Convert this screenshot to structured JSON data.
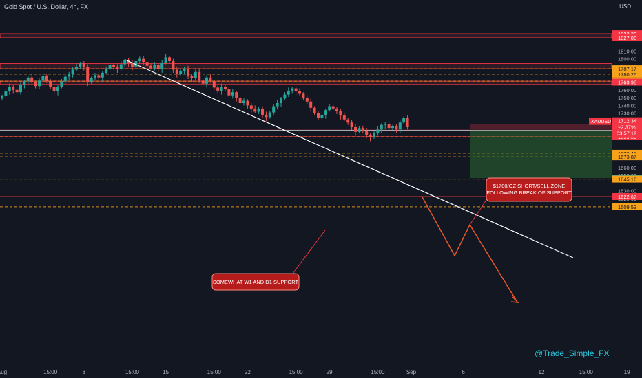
{
  "header": {
    "symbol_title": "Gold Spot / U.S. Dollar, 4h, FX",
    "currency": "USD"
  },
  "watermark": "@Trade_Simple_FX",
  "colors": {
    "background": "#131722",
    "up": "#26a69a",
    "down": "#ef5350",
    "orange_line": "#f7a21b",
    "red_line": "#f23645",
    "text": "#b2b5be",
    "target_zone": "#1b5e20",
    "stop_zone": "#6b1a1f"
  },
  "chart_data": {
    "type": "candlestick",
    "title": "Gold Spot / U.S. Dollar, 4h, FX",
    "symbol": "XAUUSD",
    "ylim": [
      1605,
      1850
    ],
    "y_ticks": [
      1810,
      1800,
      1790,
      1760,
      1750,
      1740,
      1730,
      1720,
      1660,
      1650,
      1630,
      1620,
      1610
    ],
    "x_ticks": [
      {
        "label": "Aug",
        "i": 0
      },
      {
        "label": "15:00",
        "i": 13
      },
      {
        "label": "8",
        "i": 22
      },
      {
        "label": "15:00",
        "i": 35
      },
      {
        "label": "15",
        "i": 44
      },
      {
        "label": "15:00",
        "i": 57
      },
      {
        "label": "22",
        "i": 66
      },
      {
        "label": "15:00",
        "i": 79
      },
      {
        "label": "29",
        "i": 88
      },
      {
        "label": "15:00",
        "i": 101
      },
      {
        "label": "Sep",
        "i": 110
      },
      {
        "label": "6",
        "i": 124
      },
      {
        "label": "12",
        "i": 145
      },
      {
        "label": "15:00",
        "i": 157
      },
      {
        "label": "19",
        "i": 168
      },
      {
        "label": "15:00",
        "i": 180
      }
    ],
    "closes": [
      1752,
      1758,
      1764,
      1760,
      1757,
      1766,
      1771,
      1776,
      1770,
      1765,
      1772,
      1778,
      1771,
      1764,
      1758,
      1764,
      1771,
      1777,
      1781,
      1786,
      1790,
      1794,
      1789,
      1770,
      1775,
      1779,
      1776,
      1782,
      1787,
      1792,
      1790,
      1787,
      1793,
      1798,
      1794,
      1790,
      1797,
      1800,
      1796,
      1791,
      1788,
      1792,
      1787,
      1795,
      1802,
      1797,
      1786,
      1781,
      1784,
      1787,
      1778,
      1775,
      1783,
      1772,
      1768,
      1776,
      1771,
      1763,
      1759,
      1764,
      1761,
      1753,
      1757,
      1750,
      1743,
      1746,
      1740,
      1736,
      1732,
      1736,
      1728,
      1725,
      1731,
      1739,
      1743,
      1749,
      1754,
      1759,
      1762,
      1758,
      1755,
      1750,
      1745,
      1737,
      1730,
      1724,
      1728,
      1734,
      1739,
      1736,
      1733,
      1727,
      1722,
      1718,
      1712,
      1706,
      1711,
      1707,
      1702,
      1699,
      1704,
      1709,
      1715,
      1716,
      1711,
      1713,
      1709,
      1718,
      1724,
      1712
    ],
    "price_levels": [
      {
        "value": "1832.29",
        "color": "#f23645"
      },
      {
        "value": "1827.08",
        "color": "#f23645"
      },
      {
        "value": "1787.17",
        "color": "#f7a21b"
      },
      {
        "value": "1780.26",
        "color": "#f7a21b"
      },
      {
        "value": "1771.24",
        "color": "#f7a21b"
      },
      {
        "value": "1769.98",
        "color": "#f23645"
      },
      {
        "value": "1709.59",
        "color": "#f23645"
      },
      {
        "value": "1707.72",
        "color": "#26a69a"
      },
      {
        "value": "1700.16",
        "color": "#6b6f7a"
      },
      {
        "value": "1699.84",
        "color": "#f7a21b"
      },
      {
        "value": "1699.80",
        "color": "#f23645"
      },
      {
        "value": "1678.47",
        "color": "#f7a21b"
      },
      {
        "value": "1673.87",
        "color": "#f7a21b"
      },
      {
        "value": "1646.48",
        "color": "#26a69a"
      },
      {
        "value": "1645.16",
        "color": "#f7a21b"
      },
      {
        "value": "1622.67",
        "color": "#f23645"
      },
      {
        "value": "1609.53",
        "color": "#f7a21b"
      }
    ],
    "last_price": {
      "symbol": "XAUUSD",
      "price": "1712.34",
      "change": "−2.37%",
      "countdown": "03:57:12"
    },
    "annotations": [
      {
        "lines": [
          "$1700/OZ SHORT/SELL ZONE",
          "FOLLOWING BREAK OF SUPPORT"
        ]
      },
      {
        "lines": [
          "SOMEWHAT W1 AND D1 SUPPORT"
        ]
      }
    ]
  }
}
